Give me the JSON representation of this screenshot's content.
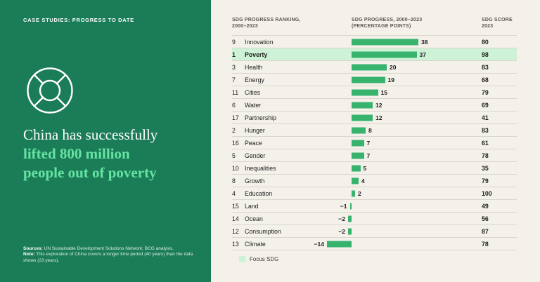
{
  "slide": {
    "left_panel": {
      "eyebrow": "CASE STUDIES: PROGRESS TO DATE",
      "icon": "lifebuoy-icon",
      "headline": {
        "line1_white": "China has successfully",
        "line2_green": "lifted 800 million",
        "line3_green": "people out of poverty"
      },
      "footnotes": {
        "sources_label": "Sources:",
        "sources_text": " UN Sustainable Development Solutions Network; BCG analysis.",
        "note_label": "Note:",
        "note_text": " This exploration of China covers a longer time period (40 years) than the data shows (23 years)."
      }
    },
    "table": {
      "headers": {
        "col1_line1": "SDG PROGRESS RANKING,",
        "col1_line2": "2000–2023",
        "col2_line1": "SDG PROGRESS, 2000–2023",
        "col2_line2": "(PERCENTAGE POINTS)",
        "col3_line1": "SDG SCORE",
        "col3_line2": "2023"
      },
      "rows": [
        {
          "rank": "9",
          "name": "Innovation",
          "value": 38,
          "value_label": "38",
          "score": "80",
          "focus": false
        },
        {
          "rank": "1",
          "name": "Poverty",
          "value": 37,
          "value_label": "37",
          "score": "98",
          "focus": true
        },
        {
          "rank": "3",
          "name": "Health",
          "value": 20,
          "value_label": "20",
          "score": "83",
          "focus": false
        },
        {
          "rank": "7",
          "name": "Energy",
          "value": 19,
          "value_label": "19",
          "score": "68",
          "focus": false
        },
        {
          "rank": "11",
          "name": "Cities",
          "value": 15,
          "value_label": "15",
          "score": "79",
          "focus": false
        },
        {
          "rank": "6",
          "name": "Water",
          "value": 12,
          "value_label": "12",
          "score": "69",
          "focus": false
        },
        {
          "rank": "17",
          "name": "Partnership",
          "value": 12,
          "value_label": "12",
          "score": "41",
          "focus": false
        },
        {
          "rank": "2",
          "name": "Hunger",
          "value": 8,
          "value_label": "8",
          "score": "83",
          "focus": false
        },
        {
          "rank": "16",
          "name": "Peace",
          "value": 7,
          "value_label": "7",
          "score": "61",
          "focus": false
        },
        {
          "rank": "5",
          "name": "Gender",
          "value": 7,
          "value_label": "7",
          "score": "78",
          "focus": false
        },
        {
          "rank": "10",
          "name": "Inequalities",
          "value": 5,
          "value_label": "5",
          "score": "35",
          "focus": false
        },
        {
          "rank": "8",
          "name": "Growth",
          "value": 4,
          "value_label": "4",
          "score": "79",
          "focus": false
        },
        {
          "rank": "4",
          "name": "Education",
          "value": 2,
          "value_label": "2",
          "score": "100",
          "focus": false
        },
        {
          "rank": "15",
          "name": "Land",
          "value": -1,
          "value_label": "−1",
          "score": "49",
          "focus": false
        },
        {
          "rank": "14",
          "name": "Ocean",
          "value": -2,
          "value_label": "−2",
          "score": "56",
          "focus": false
        },
        {
          "rank": "12",
          "name": "Consumption",
          "value": -2,
          "value_label": "−2",
          "score": "87",
          "focus": false
        },
        {
          "rank": "13",
          "name": "Climate",
          "value": -14,
          "value_label": "−14",
          "score": "78",
          "focus": false
        }
      ],
      "legend_label": "Focus SDG"
    }
  },
  "chart_data": {
    "type": "bar",
    "orientation": "horizontal",
    "title": "SDG progress ranking, 2000–2023",
    "categories": [
      "Innovation",
      "Poverty",
      "Health",
      "Energy",
      "Cities",
      "Water",
      "Partnership",
      "Hunger",
      "Peace",
      "Gender",
      "Inequalities",
      "Growth",
      "Education",
      "Land",
      "Ocean",
      "Consumption",
      "Climate"
    ],
    "ranks": [
      9,
      1,
      3,
      7,
      11,
      6,
      17,
      2,
      16,
      5,
      10,
      8,
      4,
      15,
      14,
      12,
      13
    ],
    "series": [
      {
        "name": "SDG progress, 2000–2023 (percentage points)",
        "values": [
          38,
          37,
          20,
          19,
          15,
          12,
          12,
          8,
          7,
          7,
          5,
          4,
          2,
          -1,
          -2,
          -2,
          -14
        ]
      },
      {
        "name": "SDG score 2023",
        "values": [
          80,
          98,
          83,
          68,
          79,
          69,
          41,
          83,
          61,
          78,
          35,
          79,
          100,
          49,
          56,
          87,
          78
        ]
      }
    ],
    "focus_category": "Poverty",
    "legend": [
      "Focus SDG"
    ],
    "value_range_hint": [
      -14,
      38
    ],
    "grid": false,
    "legend_position": "bottom-left"
  },
  "colors": {
    "panel_green": "#1b7d57",
    "accent_mint_text": "#66e3a3",
    "background_cream": "#f4f1ea",
    "bar_green": "#37b36e",
    "focus_row_bg": "#cdf2d5",
    "separator": "#d9d6cc",
    "text_dark": "#1e1e1e",
    "header_gray": "#5a5850"
  }
}
